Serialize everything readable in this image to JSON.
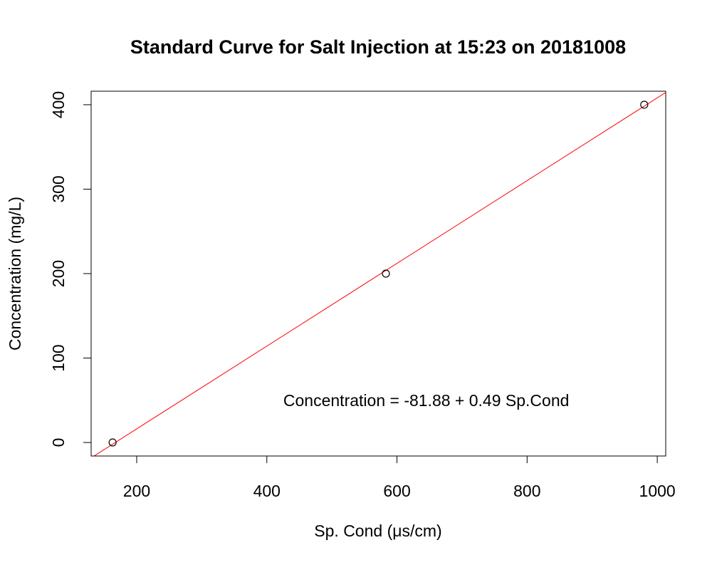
{
  "chart_data": {
    "type": "scatter",
    "title": "Standard Curve for Salt Injection at 15:23 on 20181008",
    "xlabel": "Sp. Cond (μs/cm)",
    "ylabel": "Concentration (mg/L)",
    "xlim": [
      130,
      1013
    ],
    "ylim": [
      -16,
      416
    ],
    "xticks": [
      200,
      400,
      600,
      800,
      1000
    ],
    "yticks": [
      0,
      100,
      200,
      300,
      400
    ],
    "points": [
      {
        "x": 163,
        "y": 0
      },
      {
        "x": 583,
        "y": 200
      },
      {
        "x": 980,
        "y": 400
      }
    ],
    "fit": {
      "intercept": -81.88,
      "slope": 0.49
    },
    "fit_color": "#ff0000",
    "annotation": "Concentration = -81.88  +  0.49  Sp.Cond",
    "annotation_pos": {
      "x": 645,
      "y": 50
    },
    "grid": false
  }
}
